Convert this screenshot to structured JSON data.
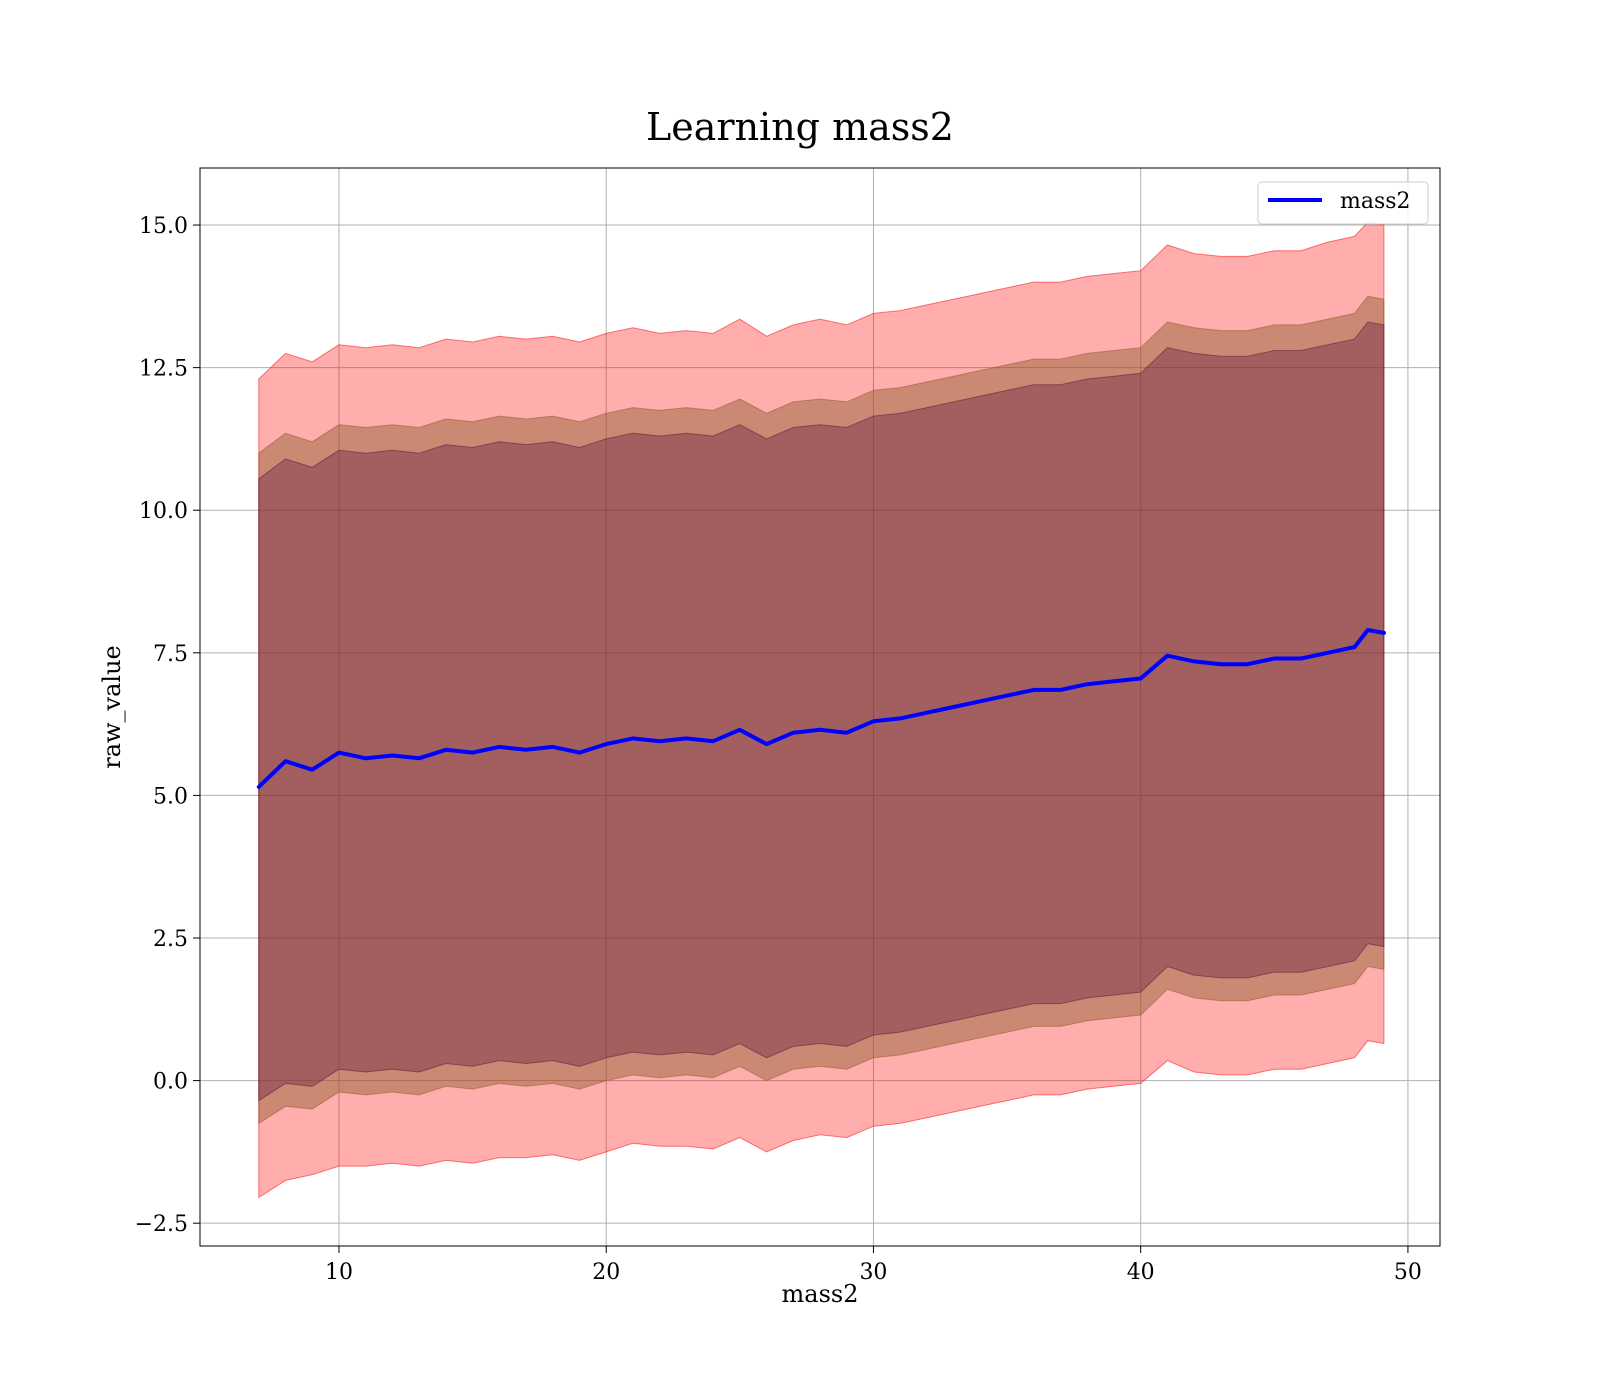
{
  "chart_data": {
    "type": "area",
    "title": "Learning mass2",
    "xlabel": "mass2",
    "ylabel": "raw_value",
    "xlim": [
      4.8,
      51.2
    ],
    "ylim": [
      -2.9,
      16.0
    ],
    "xticks": [
      10,
      20,
      30,
      40,
      50
    ],
    "yticks": [
      -2.5,
      0.0,
      2.5,
      5.0,
      7.5,
      10.0,
      12.5,
      15.0
    ],
    "ytick_labels": [
      "−2.5",
      "0.0",
      "2.5",
      "5.0",
      "7.5",
      "10.0",
      "12.5",
      "15.0"
    ],
    "grid": true,
    "legend": {
      "position": "top-right",
      "entries": [
        {
          "label": "mass2",
          "color": "#0000ff"
        }
      ]
    },
    "x": [
      7.0,
      8.0,
      9.0,
      10.0,
      11.0,
      12.0,
      13.0,
      14.0,
      15.0,
      16.0,
      17.0,
      18.0,
      19.0,
      20.0,
      21.0,
      22.0,
      23.0,
      24.0,
      25.0,
      26.0,
      27.0,
      28.0,
      29.0,
      30.0,
      31.0,
      32.0,
      33.0,
      34.0,
      35.0,
      36.0,
      37.0,
      38.0,
      39.0,
      40.0,
      41.0,
      42.0,
      43.0,
      44.0,
      45.0,
      46.0,
      47.0,
      48.0,
      48.5,
      49.1
    ],
    "series": [
      {
        "name": "mass2",
        "color": "#0000ff",
        "values": [
          5.15,
          5.6,
          5.45,
          5.75,
          5.65,
          5.7,
          5.65,
          5.8,
          5.75,
          5.85,
          5.8,
          5.85,
          5.75,
          5.9,
          6.0,
          5.95,
          6.0,
          5.95,
          6.15,
          5.9,
          6.1,
          6.15,
          6.1,
          6.3,
          6.35,
          6.45,
          6.55,
          6.65,
          6.75,
          6.85,
          6.85,
          6.95,
          7.0,
          7.05,
          7.45,
          7.35,
          7.3,
          7.3,
          7.4,
          7.4,
          7.5,
          7.6,
          7.9,
          7.85
        ]
      }
    ],
    "bands": [
      {
        "color": "#ff0000",
        "opacity": 0.32,
        "lower": [
          -2.05,
          -1.75,
          -1.65,
          -1.5,
          -1.5,
          -1.45,
          -1.5,
          -1.4,
          -1.45,
          -1.35,
          -1.35,
          -1.3,
          -1.4,
          -1.25,
          -1.1,
          -1.15,
          -1.15,
          -1.2,
          -1.0,
          -1.25,
          -1.05,
          -0.95,
          -1.0,
          -0.8,
          -0.75,
          -0.65,
          -0.55,
          -0.45,
          -0.35,
          -0.25,
          -0.25,
          -0.15,
          -0.1,
          -0.05,
          0.35,
          0.15,
          0.1,
          0.1,
          0.2,
          0.2,
          0.3,
          0.4,
          0.7,
          0.65
        ],
        "upper": [
          12.3,
          12.75,
          12.6,
          12.9,
          12.85,
          12.9,
          12.85,
          13.0,
          12.95,
          13.05,
          13.0,
          13.05,
          12.95,
          13.1,
          13.2,
          13.1,
          13.15,
          13.1,
          13.35,
          13.05,
          13.25,
          13.35,
          13.25,
          13.45,
          13.5,
          13.6,
          13.7,
          13.8,
          13.9,
          14.0,
          14.0,
          14.1,
          14.15,
          14.2,
          14.65,
          14.5,
          14.45,
          14.45,
          14.55,
          14.55,
          14.7,
          14.8,
          15.05,
          15.0
        ]
      },
      {
        "color": "#8b5a2b",
        "opacity": 0.45,
        "lower": [
          -0.75,
          -0.45,
          -0.5,
          -0.2,
          -0.25,
          -0.2,
          -0.25,
          -0.1,
          -0.15,
          -0.05,
          -0.1,
          -0.05,
          -0.15,
          0.0,
          0.1,
          0.05,
          0.1,
          0.05,
          0.25,
          0.0,
          0.2,
          0.25,
          0.2,
          0.4,
          0.45,
          0.55,
          0.65,
          0.75,
          0.85,
          0.95,
          0.95,
          1.05,
          1.1,
          1.15,
          1.6,
          1.45,
          1.4,
          1.4,
          1.5,
          1.5,
          1.6,
          1.7,
          2.0,
          1.95
        ],
        "upper": [
          11.0,
          11.35,
          11.2,
          11.5,
          11.45,
          11.5,
          11.45,
          11.6,
          11.55,
          11.65,
          11.6,
          11.65,
          11.55,
          11.7,
          11.8,
          11.75,
          11.8,
          11.75,
          11.95,
          11.7,
          11.9,
          11.95,
          11.9,
          12.1,
          12.15,
          12.25,
          12.35,
          12.45,
          12.55,
          12.65,
          12.65,
          12.75,
          12.8,
          12.85,
          13.3,
          13.2,
          13.15,
          13.15,
          13.25,
          13.25,
          13.35,
          13.45,
          13.75,
          13.7
        ]
      },
      {
        "color": "#5a1040",
        "opacity": 0.35,
        "lower": [
          -0.35,
          -0.05,
          -0.1,
          0.2,
          0.15,
          0.2,
          0.15,
          0.3,
          0.25,
          0.35,
          0.3,
          0.35,
          0.25,
          0.4,
          0.5,
          0.45,
          0.5,
          0.45,
          0.65,
          0.4,
          0.6,
          0.65,
          0.6,
          0.8,
          0.85,
          0.95,
          1.05,
          1.15,
          1.25,
          1.35,
          1.35,
          1.45,
          1.5,
          1.55,
          2.0,
          1.85,
          1.8,
          1.8,
          1.9,
          1.9,
          2.0,
          2.1,
          2.4,
          2.35
        ],
        "upper": [
          10.55,
          10.9,
          10.75,
          11.05,
          11.0,
          11.05,
          11.0,
          11.15,
          11.1,
          11.2,
          11.15,
          11.2,
          11.1,
          11.25,
          11.35,
          11.3,
          11.35,
          11.3,
          11.5,
          11.25,
          11.45,
          11.5,
          11.45,
          11.65,
          11.7,
          11.8,
          11.9,
          12.0,
          12.1,
          12.2,
          12.2,
          12.3,
          12.35,
          12.4,
          12.85,
          12.75,
          12.7,
          12.7,
          12.8,
          12.8,
          12.9,
          13.0,
          13.3,
          13.25
        ]
      }
    ]
  }
}
